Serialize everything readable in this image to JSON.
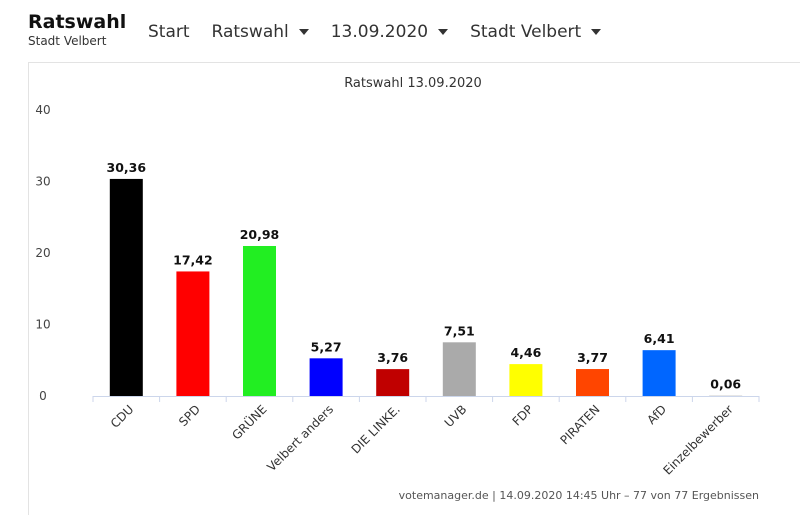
{
  "brand": {
    "title": "Ratswahl",
    "subtitle": "Stadt Velbert"
  },
  "nav": {
    "start": "Start",
    "election": "Ratswahl",
    "date": "13.09.2020",
    "region": "Stadt Velbert"
  },
  "chart_data": {
    "type": "bar",
    "title": "Ratswahl 13.09.2020",
    "categories": [
      "CDU",
      "SPD",
      "GRÜNE",
      "Velbert anders",
      "DIE LINKE.",
      "UVB",
      "FDP",
      "PIRATEN",
      "AfD",
      "Einzelbewerber"
    ],
    "values": [
      30.36,
      17.42,
      20.98,
      5.27,
      3.76,
      7.51,
      4.46,
      3.77,
      6.41,
      0.06
    ],
    "value_labels": [
      "30,36",
      "17,42",
      "20,98",
      "5,27",
      "3,76",
      "7,51",
      "4,46",
      "3,77",
      "6,41",
      "0,06"
    ],
    "colors": [
      "#000000",
      "#ff0000",
      "#22ee22",
      "#0000ff",
      "#c00000",
      "#aaaaaa",
      "#ffff00",
      "#ff4500",
      "#0066ff",
      "#cccccc"
    ],
    "ylim": [
      0,
      40
    ],
    "yticks": [
      0,
      10,
      20,
      30,
      40
    ],
    "xlabel": "",
    "ylabel": "",
    "grid": false,
    "legend": "none",
    "credits": "votemanager.de | 14.09.2020 14:45 Uhr – 77 von 77 Ergebnissen"
  }
}
